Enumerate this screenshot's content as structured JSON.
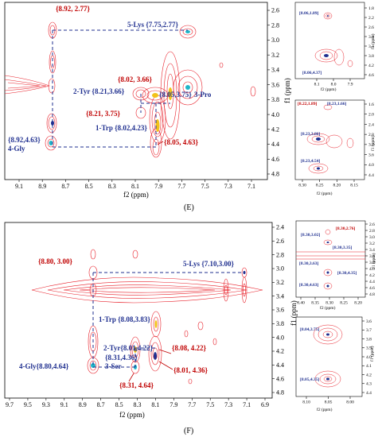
{
  "panel_E": {
    "caption": "(E)",
    "main": {
      "xlabel": "f2 (ppm)",
      "ylabel": "f1 (ppm)",
      "xticks": [
        "9.1",
        "8.9",
        "8.7",
        "8.5",
        "8.3",
        "8.1",
        "7.9",
        "7.7",
        "7.5",
        "7.3",
        "7.1"
      ],
      "yticks": [
        "2.6",
        "2.8",
        "3.0",
        "3.2",
        "3.4",
        "3.6",
        "3.8",
        "4.0",
        "4.2",
        "4.4",
        "4.6",
        "4.8"
      ],
      "labels": {
        "l1": "{8.92, 2.77}",
        "l2": "5-Lys {7.75,2.77}",
        "l3": "{8.02, 3.66}",
        "l4": "2-Tyr {8.21,3.66}",
        "l5": "{8.05,3.75}",
        "l6": "3-Pro",
        "l7": "{8.21, 3.75}",
        "l8": "1-Trp {8.02,4.23}",
        "l9": "{8.92,4.63}",
        "l10": "4-Gly",
        "l11": "{8.05, 4.63}"
      }
    },
    "inset1": {
      "labels": [
        "[8.06,1.89]",
        "[8.06,4.37]"
      ],
      "xticks": [
        "8.1",
        "8.0",
        "7.9"
      ],
      "xlabel": "f2 (ppm)",
      "yticks": [
        "1.8",
        "2.2",
        "2.6",
        "3.0",
        "3.4",
        "3.8",
        "4.2",
        "4.6"
      ],
      "ylabel": "f1 (ppm)"
    },
    "inset2": {
      "labels": [
        "[8.22,1.89]",
        "[8.23,1.66]",
        "[8.23,3.86]",
        "[8.23,4.54]"
      ],
      "xticks": [
        "8.30",
        "8.25",
        "8.20",
        "8.15"
      ],
      "xlabel": "f2 (ppm)",
      "yticks": [
        "1.6",
        "2.0",
        "2.4",
        "2.8",
        "3.2",
        "3.6",
        "4.0",
        "4.4"
      ],
      "ylabel": "f1 (ppm)"
    }
  },
  "panel_F": {
    "caption": "(F)",
    "main": {
      "xlabel": "f2 (ppm)",
      "ylabel": "f1 (ppm)",
      "xticks": [
        "9.7",
        "9.5",
        "9.3",
        "9.1",
        "8.9",
        "8.7",
        "8.5",
        "8.3",
        "8.1",
        "7.9",
        "7.7",
        "7.5",
        "7.3",
        "7.1",
        "6.9"
      ],
      "yticks": [
        "2.4",
        "2.6",
        "2.8",
        "3.0",
        "3.2",
        "3.4",
        "3.6",
        "3.8",
        "4.0",
        "4.2",
        "4.4",
        "4.6",
        "4.8"
      ],
      "labels": {
        "l1": "{8.80, 3.00}",
        "l2": "5-Lys {7.10,3.00}",
        "l3": "1-Trp {8.08,3.83}",
        "l4": "2-Tyr{8.01,4.22}",
        "l5": "{8.08, 4.22}",
        "l6": "{8.31,4.36}",
        "l7": "3-Ser",
        "l8": "{8.01, 4.36}",
        "l9": "4-Gly{8.80,4.64}",
        "l10": "{8.31, 4.64}"
      }
    },
    "inset1": {
      "labels": [
        "[8.30,3.02]",
        "[8.30,2.76]",
        "[8.30,3.35]",
        "[8.30,3.63]",
        "[8.30,4.35]",
        "[8.30,4.63]"
      ],
      "xticks": [
        "8.40",
        "8.35",
        "8.30",
        "8.25",
        "8.20"
      ],
      "xlabel": "f2 (ppm)",
      "yticks": [
        "2.6",
        "2.8",
        "3.0",
        "3.2",
        "3.4",
        "3.6",
        "3.8",
        "4.0",
        "4.2",
        "4.4",
        "4.6",
        "4.8"
      ],
      "ylabel": "f1 (ppm)"
    },
    "inset2": {
      "labels": [
        "[8.04,3.75]",
        "[8.05,4.35]"
      ],
      "xticks": [
        "8.10",
        "8.05",
        "8.00"
      ],
      "xlabel": "f2 (ppm)",
      "yticks": [
        "3.6",
        "3.7",
        "3.8",
        "3.9",
        "4.0",
        "4.1",
        "4.2",
        "4.3",
        "4.4"
      ],
      "ylabel": "f1 (ppm)"
    }
  }
}
